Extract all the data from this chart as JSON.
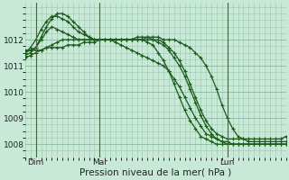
{
  "bg_color": "#c8e8d8",
  "plot_bg": "#c8e8d8",
  "grid_color": "#88bb99",
  "line_color": "#1a5c1a",
  "xlabel": "Pression niveau de la mer( hPa )",
  "xlabel_fontsize": 7.5,
  "tick_fontsize": 6.5,
  "ylim": [
    1007.5,
    1013.4
  ],
  "yticks": [
    1008,
    1009,
    1010,
    1011,
    1012
  ],
  "xtick_labels": [
    "Dim",
    "Mar",
    "Lun"
  ],
  "xtick_positions": [
    2,
    14,
    38
  ],
  "vline_positions": [
    2,
    14,
    38
  ],
  "n_points": 50,
  "series": [
    [
      1011.5,
      1011.6,
      1011.7,
      1012.0,
      1012.3,
      1012.5,
      1012.4,
      1012.3,
      1012.2,
      1012.1,
      1012.0,
      1012.0,
      1012.0,
      1012.0,
      1012.0,
      1012.0,
      1012.0,
      1012.0,
      1012.0,
      1012.0,
      1012.0,
      1012.0,
      1012.0,
      1012.1,
      1012.1,
      1012.1,
      1012.0,
      1012.0,
      1012.0,
      1011.9,
      1011.8,
      1011.7,
      1011.5,
      1011.3,
      1011.0,
      1010.6,
      1010.1,
      1009.5,
      1009.0,
      1008.6,
      1008.3,
      1008.2,
      1008.1,
      1008.1,
      1008.1,
      1008.1,
      1008.1,
      1008.1,
      1008.1,
      1008.1
    ],
    [
      1011.5,
      1011.7,
      1012.0,
      1012.4,
      1012.7,
      1012.9,
      1012.9,
      1012.8,
      1012.7,
      1012.5,
      1012.3,
      1012.2,
      1012.1,
      1012.0,
      1012.0,
      1012.0,
      1012.0,
      1012.0,
      1012.0,
      1012.0,
      1012.0,
      1012.1,
      1012.1,
      1012.1,
      1012.0,
      1011.9,
      1011.8,
      1011.6,
      1011.3,
      1011.0,
      1010.6,
      1010.1,
      1009.6,
      1009.1,
      1008.7,
      1008.4,
      1008.2,
      1008.1,
      1008.1,
      1008.0,
      1008.0,
      1008.0,
      1008.0,
      1008.0,
      1008.0,
      1008.0,
      1008.0,
      1008.0,
      1008.0,
      1008.0
    ],
    [
      1011.4,
      1011.5,
      1011.7,
      1012.1,
      1012.5,
      1012.8,
      1013.0,
      1013.0,
      1012.9,
      1012.7,
      1012.5,
      1012.3,
      1012.1,
      1012.0,
      1012.0,
      1012.0,
      1012.0,
      1012.0,
      1012.0,
      1012.0,
      1012.0,
      1012.0,
      1012.0,
      1011.9,
      1011.8,
      1011.5,
      1011.2,
      1010.8,
      1010.3,
      1009.8,
      1009.3,
      1008.9,
      1008.6,
      1008.3,
      1008.2,
      1008.1,
      1008.0,
      1008.0,
      1008.0,
      1008.0,
      1008.0,
      1008.0,
      1008.0,
      1008.0,
      1008.0,
      1008.0,
      1008.0,
      1008.0,
      1008.0,
      1008.0
    ],
    [
      1011.3,
      1011.4,
      1011.5,
      1011.6,
      1011.7,
      1011.8,
      1011.9,
      1012.0,
      1012.0,
      1012.0,
      1012.0,
      1012.0,
      1012.0,
      1012.0,
      1012.0,
      1012.0,
      1012.0,
      1012.0,
      1012.0,
      1012.0,
      1012.0,
      1012.0,
      1012.0,
      1012.0,
      1012.0,
      1012.0,
      1011.9,
      1011.7,
      1011.5,
      1011.2,
      1010.8,
      1010.3,
      1009.8,
      1009.3,
      1008.9,
      1008.6,
      1008.4,
      1008.3,
      1008.2,
      1008.2,
      1008.2,
      1008.2,
      1008.2,
      1008.2,
      1008.2,
      1008.2,
      1008.2,
      1008.2,
      1008.2,
      1008.3
    ],
    [
      1011.6,
      1011.6,
      1011.6,
      1011.6,
      1011.7,
      1011.7,
      1011.7,
      1011.7,
      1011.8,
      1011.8,
      1011.8,
      1011.9,
      1011.9,
      1011.9,
      1012.0,
      1012.0,
      1012.0,
      1011.9,
      1011.8,
      1011.7,
      1011.6,
      1011.5,
      1011.4,
      1011.3,
      1011.2,
      1011.1,
      1011.0,
      1010.8,
      1010.5,
      1010.2,
      1009.8,
      1009.4,
      1009.0,
      1008.7,
      1008.4,
      1008.3,
      1008.2,
      1008.1,
      1008.0,
      1008.0,
      1008.0,
      1008.0,
      1008.0,
      1008.0,
      1008.0,
      1008.0,
      1008.0,
      1008.0,
      1008.0,
      1008.0
    ]
  ]
}
